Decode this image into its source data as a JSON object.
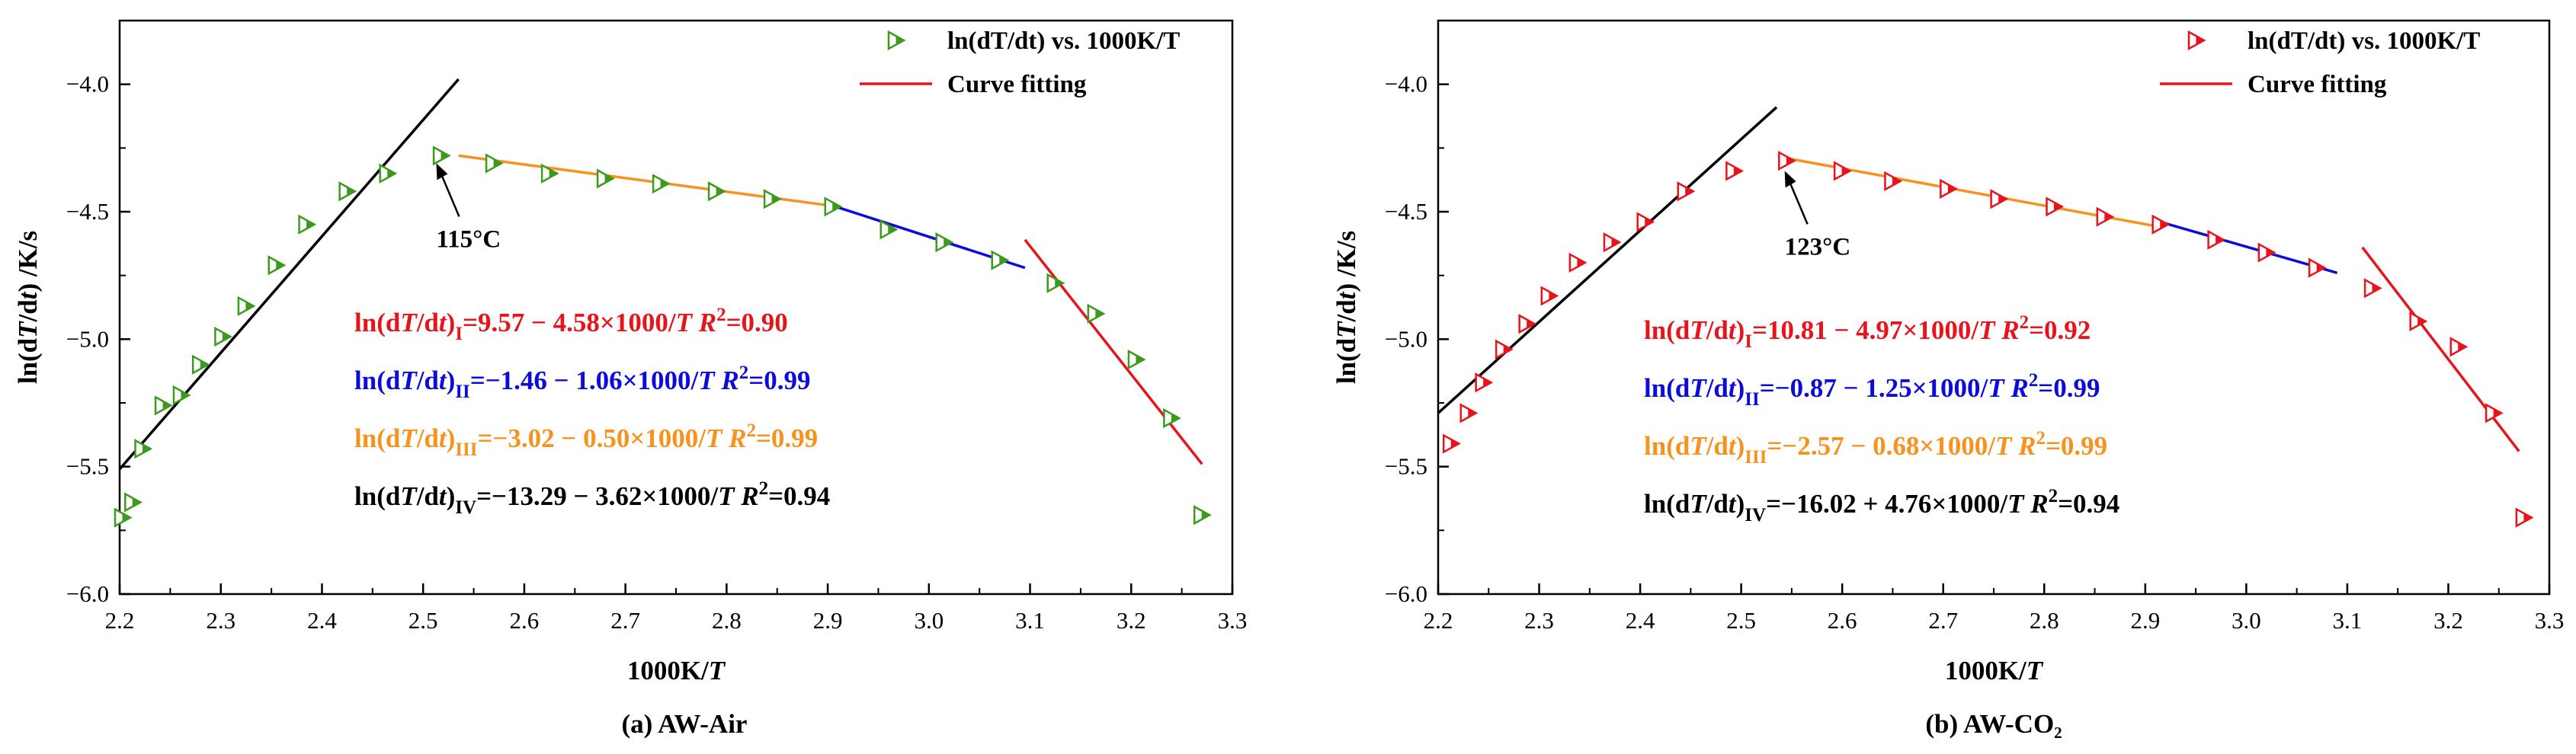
{
  "chart_data": [
    {
      "type": "scatter",
      "caption": "(a) AW-Air",
      "xlabel": "1000K/T",
      "ylabel": "ln(dT/dt) /K/s",
      "xlim": [
        2.2,
        3.3
      ],
      "ylim": [
        -6.0,
        -3.75
      ],
      "xticks": [
        "2.2",
        "2.3",
        "2.4",
        "2.5",
        "2.6",
        "2.7",
        "2.8",
        "2.9",
        "3.0",
        "3.1",
        "3.2",
        "3.3"
      ],
      "yticks": [
        "−4.0",
        "−4.5",
        "−5.0",
        "−5.5",
        "−6.0"
      ],
      "marker_color": "#3c9a1c",
      "legend": {
        "scatter": "ln(dT/dt) vs. 1000K/T",
        "fit": "Curve fitting"
      },
      "annotation": {
        "text": "115°C",
        "point": [
          2.51,
          -4.28
        ]
      },
      "points": [
        [
          2.203,
          -5.7
        ],
        [
          2.213,
          -5.64
        ],
        [
          2.223,
          -5.43
        ],
        [
          2.243,
          -5.26
        ],
        [
          2.261,
          -5.22
        ],
        [
          2.28,
          -5.1
        ],
        [
          2.302,
          -4.99
        ],
        [
          2.325,
          -4.87
        ],
        [
          2.355,
          -4.71
        ],
        [
          2.385,
          -4.55
        ],
        [
          2.425,
          -4.42
        ],
        [
          2.465,
          -4.35
        ],
        [
          2.518,
          -4.28
        ],
        [
          2.57,
          -4.31
        ],
        [
          2.625,
          -4.35
        ],
        [
          2.68,
          -4.37
        ],
        [
          2.735,
          -4.39
        ],
        [
          2.79,
          -4.42
        ],
        [
          2.845,
          -4.45
        ],
        [
          2.905,
          -4.48
        ],
        [
          2.96,
          -4.57
        ],
        [
          3.015,
          -4.62
        ],
        [
          3.07,
          -4.69
        ],
        [
          3.125,
          -4.78
        ],
        [
          3.165,
          -4.9
        ],
        [
          3.205,
          -5.08
        ],
        [
          3.24,
          -5.31
        ],
        [
          3.27,
          -5.69
        ]
      ],
      "fits": [
        {
          "name": "I",
          "color": "#000000",
          "x": [
            2.2,
            2.535
          ],
          "y": [
            -5.51,
            -3.98
          ]
        },
        {
          "name": "III",
          "color": "#f7921e",
          "x": [
            2.535,
            2.91
          ],
          "y": [
            -4.28,
            -4.48
          ]
        },
        {
          "name": "II",
          "color": "#0b0bdb",
          "x": [
            2.9,
            3.095
          ],
          "y": [
            -4.47,
            -4.72
          ]
        },
        {
          "name": "IV",
          "color": "#e8141b",
          "x": [
            3.095,
            3.27
          ],
          "y": [
            -4.61,
            -5.49
          ]
        }
      ],
      "equations": [
        {
          "color": "#e8141b",
          "pre": "ln(d",
          "T": "T",
          "mid": "/d",
          "t": "t",
          "post": ")",
          "sub": "I",
          "body": "=9.57 − 4.58×1000/",
          "T2": "T",
          "R": "R",
          "exp": "2",
          "r2": "=0.90"
        },
        {
          "color": "#0b0bdb",
          "pre": "ln(d",
          "T": "T",
          "mid": "/d",
          "t": "t",
          "post": ")",
          "sub": "II",
          "body": "=−1.46 − 1.06×1000/",
          "T2": "T",
          "R": "R",
          "exp": "2",
          "r2": "=0.99"
        },
        {
          "color": "#f7921e",
          "pre": "ln(d",
          "T": "T",
          "mid": "/d",
          "t": "t",
          "post": ")",
          "sub": "III",
          "body": "=−3.02 − 0.50×1000/",
          "T2": "T",
          "R": "R",
          "exp": "2",
          "r2": "=0.99"
        },
        {
          "color": "#000000",
          "pre": "ln(d",
          "T": "T",
          "mid": "/d",
          "t": "t",
          "post": ")",
          "sub": "IV",
          "body": "=−13.29 − 3.62×1000/",
          "T2": "T",
          "R": "R",
          "exp": "2",
          "r2": "=0.94"
        }
      ]
    },
    {
      "type": "scatter",
      "caption": "(b) AW-CO₂",
      "xlabel": "1000K/T",
      "ylabel": "ln(dT/dt) /K/s",
      "xlim": [
        2.2,
        3.3
      ],
      "ylim": [
        -6.0,
        -3.75
      ],
      "xticks": [
        "2.2",
        "2.3",
        "2.4",
        "2.5",
        "2.6",
        "2.7",
        "2.8",
        "2.9",
        "3.0",
        "3.1",
        "3.2",
        "3.3"
      ],
      "yticks": [
        "−4.0",
        "−4.5",
        "−5.0",
        "−5.5",
        "−6.0"
      ],
      "marker_color": "#e8141b",
      "legend": {
        "scatter": "ln(dT/dt) vs. 1000K/T",
        "fit": "Curve fitting"
      },
      "annotation": {
        "text": "123°C",
        "point": [
          2.54,
          -4.31
        ]
      },
      "points": [
        [
          2.213,
          -5.41
        ],
        [
          2.23,
          -5.29
        ],
        [
          2.245,
          -5.17
        ],
        [
          2.265,
          -5.04
        ],
        [
          2.288,
          -4.94
        ],
        [
          2.31,
          -4.83
        ],
        [
          2.338,
          -4.7
        ],
        [
          2.372,
          -4.62
        ],
        [
          2.405,
          -4.54
        ],
        [
          2.445,
          -4.42
        ],
        [
          2.493,
          -4.34
        ],
        [
          2.545,
          -4.3
        ],
        [
          2.6,
          -4.34
        ],
        [
          2.65,
          -4.38
        ],
        [
          2.705,
          -4.41
        ],
        [
          2.755,
          -4.45
        ],
        [
          2.81,
          -4.48
        ],
        [
          2.86,
          -4.52
        ],
        [
          2.915,
          -4.55
        ],
        [
          2.97,
          -4.61
        ],
        [
          3.02,
          -4.66
        ],
        [
          3.07,
          -4.72
        ],
        [
          3.125,
          -4.8
        ],
        [
          3.17,
          -4.93
        ],
        [
          3.21,
          -5.03
        ],
        [
          3.245,
          -5.29
        ],
        [
          3.275,
          -5.7
        ]
      ],
      "fits": [
        {
          "name": "I",
          "color": "#000000",
          "x": [
            2.2,
            2.535
          ],
          "y": [
            -5.29,
            -4.09
          ]
        },
        {
          "name": "III",
          "color": "#f7921e",
          "x": [
            2.545,
            2.915
          ],
          "y": [
            -4.29,
            -4.56
          ]
        },
        {
          "name": "II",
          "color": "#0b0bdb",
          "x": [
            2.915,
            3.09
          ],
          "y": [
            -4.54,
            -4.74
          ]
        },
        {
          "name": "IV",
          "color": "#e8141b",
          "x": [
            3.115,
            3.27
          ],
          "y": [
            -4.64,
            -5.44
          ]
        }
      ],
      "equations": [
        {
          "color": "#e8141b",
          "pre": "ln(d",
          "T": "T",
          "mid": "/d",
          "t": "t",
          "post": ")",
          "sub": "I",
          "body": "=10.81 − 4.97×1000/",
          "T2": "T",
          "R": "R",
          "exp": "2",
          "r2": "=0.92"
        },
        {
          "color": "#0b0bdb",
          "pre": "ln(d",
          "T": "T",
          "mid": "/d",
          "t": "t",
          "post": ")",
          "sub": "II",
          "body": "=−0.87 − 1.25×1000/",
          "T2": "T",
          "R": "R",
          "exp": "2",
          "r2": "=0.99"
        },
        {
          "color": "#f7921e",
          "pre": "ln(d",
          "T": "T",
          "mid": "/d",
          "t": "t",
          "post": ")",
          "sub": "III",
          "body": "=−2.57 − 0.68×1000/",
          "T2": "T",
          "R": "R",
          "exp": "2",
          "r2": "=0.99"
        },
        {
          "color": "#000000",
          "pre": "ln(d",
          "T": "T",
          "mid": "/d",
          "t": "t",
          "post": ")",
          "sub": "IV",
          "body": "=−16.02 + 4.76×1000/",
          "T2": "T",
          "R": "R",
          "exp": "2",
          "r2": "=0.94"
        }
      ]
    }
  ]
}
